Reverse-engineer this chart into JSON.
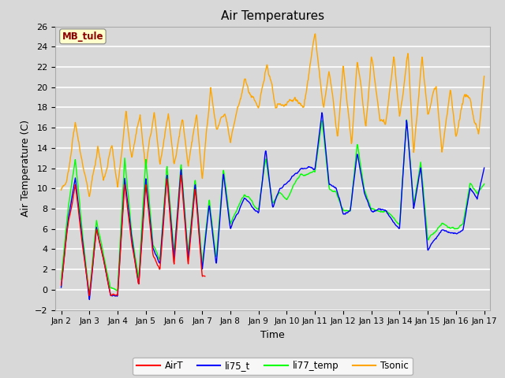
{
  "title": "Air Temperatures",
  "xlabel": "Time",
  "ylabel": "Air Temperature (C)",
  "ylim": [
    -2,
    26
  ],
  "yticks": [
    -2,
    0,
    2,
    4,
    6,
    8,
    10,
    12,
    14,
    16,
    18,
    20,
    22,
    24,
    26
  ],
  "bg_color": "#d8d8d8",
  "plot_bg_color": "#d8d8d8",
  "grid_color": "white",
  "annotation_text": "MB_tule",
  "annotation_color": "#8B0000",
  "annotation_bg": "#ffffcc",
  "legend_labels": [
    "AirT",
    "li75_t",
    "li77_temp",
    "Tsonic"
  ],
  "legend_colors": [
    "red",
    "blue",
    "lime",
    "orange"
  ],
  "x_tick_labels": [
    "Jan 2",
    "Jan 3",
    "Jan 4",
    "Jan 5",
    "Jan 6",
    "Jan 7",
    "Jan 8",
    "Jan 9",
    "Jan 10",
    "Jan 11",
    "Jan 12",
    "Jan 13",
    "Jan 14",
    "Jan 15",
    "Jan 16",
    "Jan 17"
  ],
  "figsize": [
    6.4,
    4.8
  ],
  "dpi": 100
}
